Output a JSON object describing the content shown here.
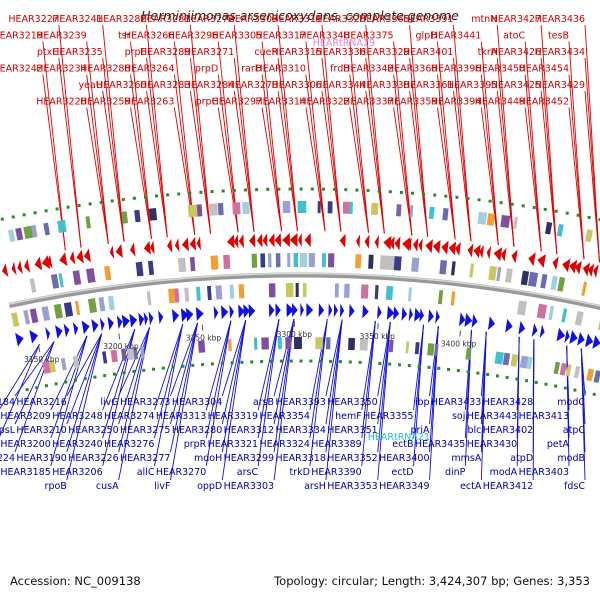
{
  "title": "Herminiimonas arsenicoxydans, complete genome",
  "footer": {
    "accession": "Accession: NC_009138",
    "topology": "Topology: circular; Length: 3,424,307 bp; Genes: 3,353"
  },
  "colors": {
    "forward_strand": "#e00000",
    "reverse_strand": "#1010e0",
    "rna_label": "#dd88dd",
    "trna_label": "#22bbdd",
    "backbone": "#999999"
  },
  "ticks": [
    "3150 kbp",
    "3200 kbp",
    "3250 kbp",
    "3300 kbp",
    "3350 kbp",
    "3400 kbp"
  ],
  "top_labels": [
    "HEAR3436",
    "tesB",
    "HEAR3434",
    "HEAR3454",
    "HEAR3429",
    "HEAR3452",
    "HEAR3427",
    "atoC",
    "HEAR3426",
    "HEAR3450",
    "HEAR3425",
    "HEAR3449",
    "mtnN",
    "HEAR3441",
    "tkrA",
    "HEAR3396",
    "HEAR3395",
    "HEAR3394",
    "HEAR3391",
    "glpD",
    "HEAR3401",
    "HEAR3368",
    "HEAR3361",
    "HEAR3359",
    "HEAR3365",
    "HEAR3375",
    "HEAR3329",
    "HEAR3342",
    "HEAR3338",
    "HEAR3337",
    "HEAR3328",
    "HEAR3340",
    "HEAR3336",
    "frdB",
    "HEAR3344",
    "HEAR3322",
    "HEAR3311",
    "HEAR3317",
    "HEAR3315",
    "HEAR3310",
    "HEAR3306",
    "HEAR3314",
    "HEAR3309",
    "HEAR3305",
    "cueR",
    "rarD",
    "HEAR3278",
    "HEAR3297",
    "HEAR3272",
    "HEAR3296",
    "HEAR3271",
    "prpD",
    "HEAR3284",
    "prpC",
    "HEAR3281",
    "HEAR3266",
    "HEAR3289",
    "HEAR3264",
    "HEAR3283",
    "HEAR3263",
    "HEAR3282",
    "tsr",
    "prpE",
    "HEAR3288",
    "HEAR3260",
    "HEAR3259",
    "HEAR3241",
    "HEAR3239",
    "HEAR3235",
    "HEAR3234",
    "yeaU",
    "HEAR3228",
    "HEAR3227",
    "HEAR3219",
    "ptxC",
    "HEAR3242"
  ],
  "bottom_labels": [
    "modC",
    "HEAR3413",
    "atpC",
    "petA",
    "modB",
    "HEAR3403",
    "fdsC",
    "HEAR3428",
    "HEAR3443",
    "HEAR3402",
    "HEAR3430",
    "atpD",
    "modA",
    "HEAR3412",
    "HEAR3433",
    "soj",
    "blc",
    "HEAR3435",
    "mmsA",
    "dinP",
    "ectA",
    "ibp",
    "HEAR3355",
    "priA",
    "ectB",
    "HEAR3400",
    "ectD",
    "HEAR3349",
    "HEAR3350",
    "hemF",
    "HEAR3351",
    "HEAR3389",
    "HEAR3352",
    "HEAR3390",
    "HEAR3353",
    "HEAR3393",
    "HEAR3354",
    "HEAR3334",
    "HEAR3324",
    "HEAR3318",
    "trkD",
    "arsH",
    "arsB",
    "HEAR3319",
    "HEAR3312",
    "HEAR3321",
    "HEAR3299",
    "arsC",
    "HEAR3303",
    "HEAR3304",
    "HEAR3313",
    "HEAR3280",
    "prpR",
    "mdoH",
    "HEAR3270",
    "oppD",
    "HEAR3273",
    "HEAR3274",
    "HEAR3275",
    "HEAR3276",
    "HEAR3277",
    "allC",
    "livF",
    "livG",
    "HEAR3248",
    "HEAR3250",
    "HEAR3240",
    "HEAR3226",
    "HEAR3206",
    "cusA",
    "HEAR3216",
    "HEAR3209",
    "HEAR3210",
    "HEAR3200",
    "HEAR3190",
    "HEAR3185",
    "rpoB",
    "HEAR3184",
    "HEAR3177",
    "rpsL",
    "HEAR3222",
    "HEAR3224"
  ],
  "rna_labels": {
    "top": "HEARtRNA19",
    "bottom": "HEARtRNA21"
  }
}
